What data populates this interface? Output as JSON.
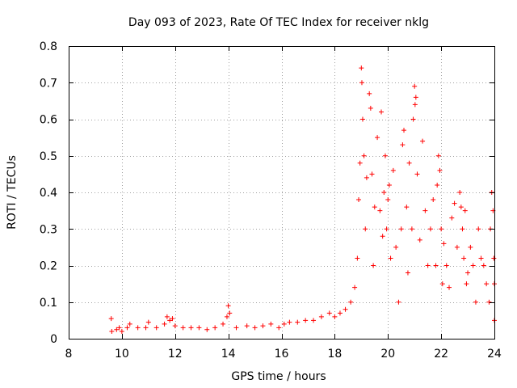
{
  "chart_data": {
    "type": "scatter",
    "title": "Day 093 of 2023, Rate Of TEC Index for receiver nklg",
    "xlabel": "GPS time / hours",
    "ylabel": "ROTI / TECUs",
    "xlim": [
      8,
      24
    ],
    "ylim": [
      0,
      0.8
    ],
    "xticks": [
      8,
      10,
      12,
      14,
      16,
      18,
      20,
      22,
      24
    ],
    "xtick_labels": [
      "8",
      "10",
      "12",
      "14",
      "16",
      "18",
      "20",
      "22",
      "24"
    ],
    "yticks": [
      0,
      0.1,
      0.2,
      0.3,
      0.4,
      0.5,
      0.6,
      0.7,
      0.8
    ],
    "ytick_labels": [
      "0",
      "0.1",
      "0.2",
      "0.3",
      "0.4",
      "0.5",
      "0.6",
      "0.7",
      "0.8"
    ],
    "grid": true,
    "marker": "+",
    "color": "#ff0000",
    "series": [
      {
        "name": "ROTI",
        "x": [
          9.6,
          9.62,
          9.8,
          9.9,
          10.0,
          10.2,
          10.3,
          10.6,
          10.9,
          11.0,
          11.3,
          11.6,
          11.7,
          11.8,
          11.9,
          12.0,
          12.3,
          12.6,
          12.9,
          13.2,
          13.5,
          13.8,
          13.95,
          14.0,
          14.05,
          14.3,
          14.7,
          15.0,
          15.3,
          15.6,
          15.9,
          16.1,
          16.3,
          16.6,
          16.9,
          17.2,
          17.5,
          17.8,
          18.0,
          18.2,
          18.4,
          18.6,
          18.75,
          18.85,
          18.9,
          18.95,
          19.0,
          19.02,
          19.05,
          19.1,
          19.15,
          19.2,
          19.3,
          19.35,
          19.4,
          19.45,
          19.5,
          19.6,
          19.7,
          19.75,
          19.8,
          19.85,
          19.9,
          19.95,
          20.0,
          20.05,
          20.1,
          20.2,
          20.3,
          20.4,
          20.5,
          20.55,
          20.6,
          20.7,
          20.75,
          20.8,
          20.9,
          20.95,
          21.0,
          21.02,
          21.05,
          21.1,
          21.2,
          21.3,
          21.4,
          21.5,
          21.6,
          21.7,
          21.8,
          21.85,
          21.9,
          21.95,
          22.0,
          22.05,
          22.1,
          22.2,
          22.3,
          22.4,
          22.5,
          22.6,
          22.7,
          22.75,
          22.8,
          22.85,
          22.9,
          22.95,
          23.0,
          23.1,
          23.2,
          23.3,
          23.4,
          23.5,
          23.6,
          23.7,
          23.8,
          23.85,
          23.9,
          23.95,
          23.98,
          24.0,
          24.0
        ],
        "y": [
          0.055,
          0.02,
          0.025,
          0.03,
          0.02,
          0.03,
          0.04,
          0.03,
          0.03,
          0.045,
          0.03,
          0.04,
          0.06,
          0.05,
          0.055,
          0.035,
          0.03,
          0.03,
          0.03,
          0.025,
          0.03,
          0.04,
          0.06,
          0.09,
          0.07,
          0.03,
          0.035,
          0.03,
          0.035,
          0.04,
          0.03,
          0.04,
          0.045,
          0.045,
          0.05,
          0.05,
          0.06,
          0.07,
          0.06,
          0.07,
          0.08,
          0.1,
          0.14,
          0.22,
          0.38,
          0.48,
          0.74,
          0.7,
          0.6,
          0.5,
          0.3,
          0.44,
          0.67,
          0.63,
          0.45,
          0.2,
          0.36,
          0.55,
          0.35,
          0.62,
          0.28,
          0.4,
          0.5,
          0.3,
          0.38,
          0.42,
          0.22,
          0.46,
          0.25,
          0.1,
          0.3,
          0.53,
          0.57,
          0.36,
          0.18,
          0.48,
          0.3,
          0.6,
          0.69,
          0.64,
          0.66,
          0.45,
          0.27,
          0.54,
          0.35,
          0.2,
          0.3,
          0.38,
          0.2,
          0.42,
          0.5,
          0.46,
          0.3,
          0.15,
          0.26,
          0.2,
          0.14,
          0.33,
          0.37,
          0.25,
          0.4,
          0.36,
          0.3,
          0.22,
          0.35,
          0.15,
          0.18,
          0.25,
          0.2,
          0.1,
          0.3,
          0.22,
          0.2,
          0.15,
          0.1,
          0.3,
          0.4,
          0.35,
          0.22,
          0.15,
          0.05
        ]
      }
    ]
  }
}
